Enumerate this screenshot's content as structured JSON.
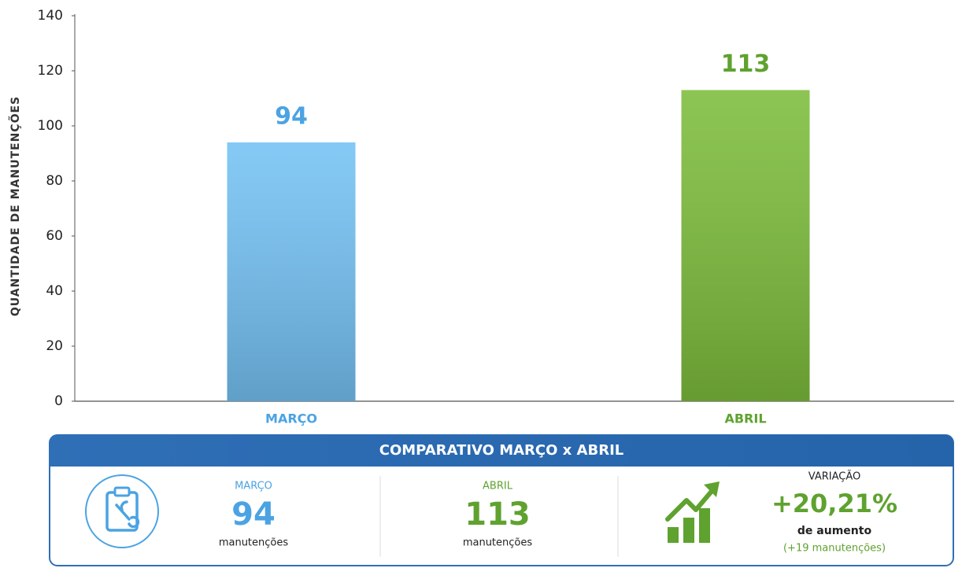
{
  "chart_data": {
    "type": "bar",
    "y_label": "QUANTIDADE DE MANUTENÇÕES",
    "categories": [
      "MARÇO",
      "ABRIL"
    ],
    "values": [
      94,
      113
    ],
    "colors": [
      "#74c2f4",
      "#7dbd3c"
    ],
    "label_colors": [
      "#4ba3e3",
      "#5fa22f"
    ],
    "ylim": [
      0,
      140
    ],
    "yticks": [
      0,
      20,
      40,
      60,
      80,
      100,
      120,
      140
    ],
    "grid": false
  },
  "summary": {
    "title": "COMPARATIVO MARÇO x ABRIL",
    "items": [
      {
        "label": "MARÇO",
        "value": "94",
        "unit": "manutenções"
      },
      {
        "label": "ABRIL",
        "value": "113",
        "unit": "manutenções"
      }
    ],
    "variation": {
      "label": "VARIAÇÃO",
      "value": "+20,21%",
      "caption": "de aumento",
      "detail": "(+19 manutenções)"
    }
  }
}
